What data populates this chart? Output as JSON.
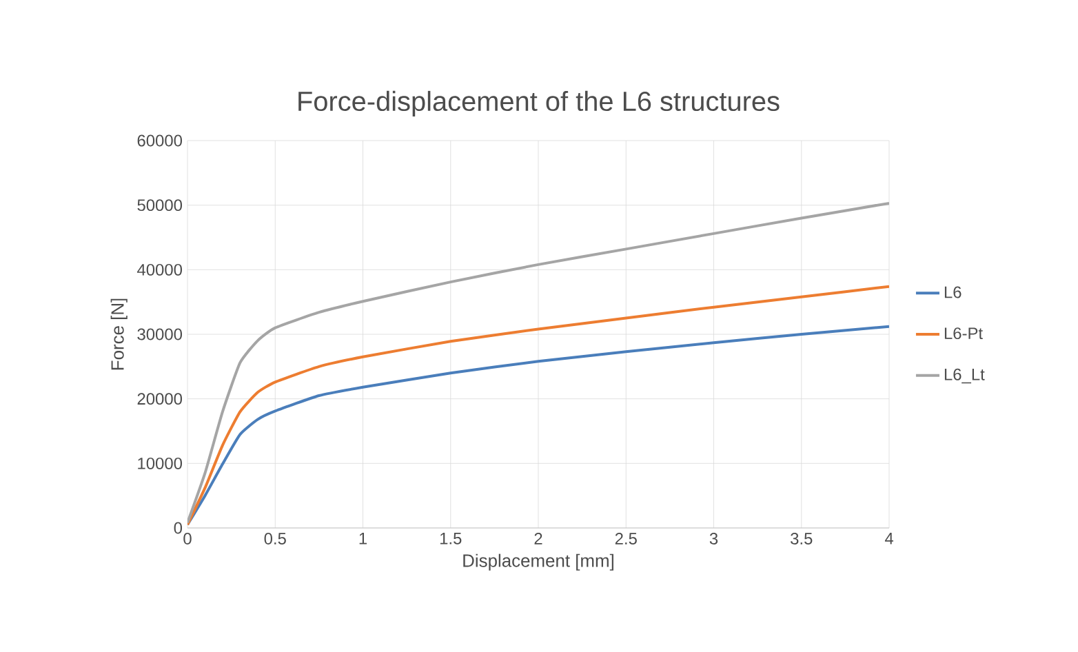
{
  "chart_data": {
    "type": "line",
    "title": "Force-displacement of the L6 structures",
    "xlabel": "Displacement [mm]",
    "ylabel": "Force [N]",
    "xlim": [
      0,
      4
    ],
    "xticks": [
      0,
      0.5,
      1,
      1.5,
      2,
      2.5,
      3,
      3.5,
      4
    ],
    "ylim": [
      0,
      60000
    ],
    "yticks": [
      0,
      10000,
      20000,
      30000,
      40000,
      50000,
      60000
    ],
    "grid": true,
    "legend": "right",
    "marker": "none",
    "line_style": "solid",
    "x": [
      0,
      0.1,
      0.2,
      0.3,
      0.4,
      0.5,
      0.75,
      1,
      1.5,
      2,
      2.5,
      3,
      3.5,
      4
    ],
    "series": [
      {
        "name": "L6",
        "color": "#4a7ebb",
        "values": [
          500,
          5000,
          9900,
          14500,
          16800,
          18100,
          20500,
          21800,
          24000,
          25800,
          27300,
          28700,
          30000,
          31200
        ]
      },
      {
        "name": "L6-Pt",
        "color": "#ed7d31",
        "values": [
          500,
          6200,
          12800,
          18000,
          21000,
          22600,
          25000,
          26500,
          28900,
          30800,
          32500,
          34200,
          35800,
          37400
        ]
      },
      {
        "name": "L6_Lt",
        "color": "#a5a5a5",
        "values": [
          800,
          8500,
          18000,
          25600,
          29000,
          31000,
          33400,
          35100,
          38100,
          40800,
          43200,
          45600,
          48000,
          50300
        ]
      }
    ]
  }
}
